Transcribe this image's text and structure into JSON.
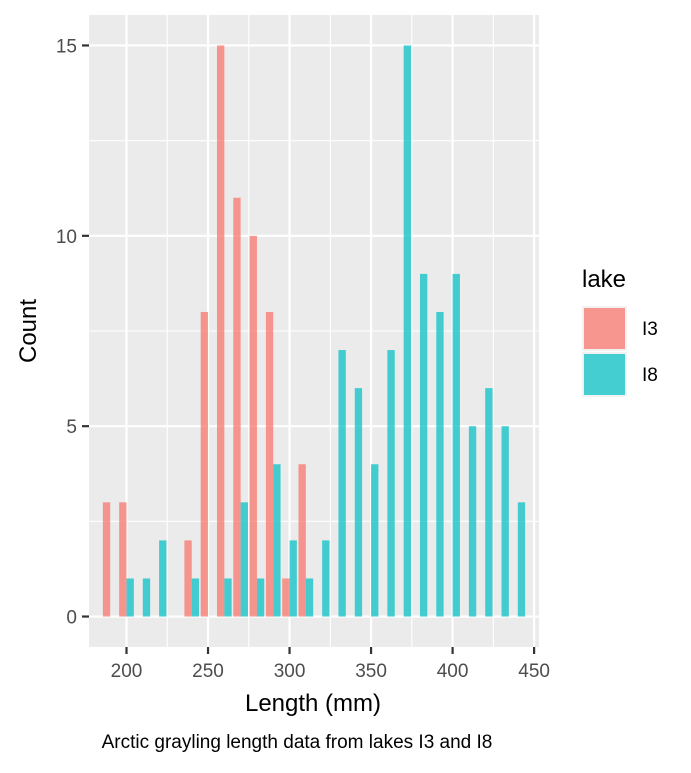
{
  "chart_data": {
    "type": "bar",
    "title": "",
    "caption": "Arctic grayling length data from lakes I3 and I8",
    "xlabel": "Length (mm)",
    "ylabel": "Count",
    "xlim": [
      177,
      453
    ],
    "ylim": [
      -0.8,
      15.8
    ],
    "xticks": [
      {
        "value": 200,
        "label": "200"
      },
      {
        "value": 250,
        "label": "250"
      },
      {
        "value": 300,
        "label": "300"
      },
      {
        "value": 350,
        "label": "350"
      },
      {
        "value": 400,
        "label": "400"
      },
      {
        "value": 450,
        "label": "450"
      }
    ],
    "yticks": [
      {
        "value": 0,
        "label": "0"
      },
      {
        "value": 5,
        "label": "5"
      },
      {
        "value": 10,
        "label": "10"
      },
      {
        "value": 15,
        "label": "15"
      }
    ],
    "bin_width": 10,
    "grid": true,
    "legend": {
      "title": "lake",
      "position": "right"
    },
    "series": [
      {
        "name": "I3",
        "color": "#F8766D",
        "bins": [
          190,
          200,
          210,
          220,
          240,
          250,
          260,
          270,
          280,
          290,
          300,
          310,
          320
        ],
        "values": [
          3,
          3,
          0,
          0,
          2,
          8,
          15,
          11,
          10,
          8,
          1,
          4,
          0
        ]
      },
      {
        "name": "I8",
        "color": "#00BFC4",
        "bins": [
          200,
          210,
          220,
          240,
          260,
          270,
          280,
          290,
          300,
          310,
          320,
          330,
          340,
          350,
          360,
          370,
          380,
          390,
          400,
          410,
          420,
          430,
          440
        ],
        "values": [
          1,
          1,
          2,
          1,
          1,
          3,
          1,
          4,
          2,
          1,
          2,
          7,
          6,
          4,
          7,
          15,
          9,
          8,
          9,
          5,
          6,
          5,
          3
        ]
      }
    ]
  }
}
